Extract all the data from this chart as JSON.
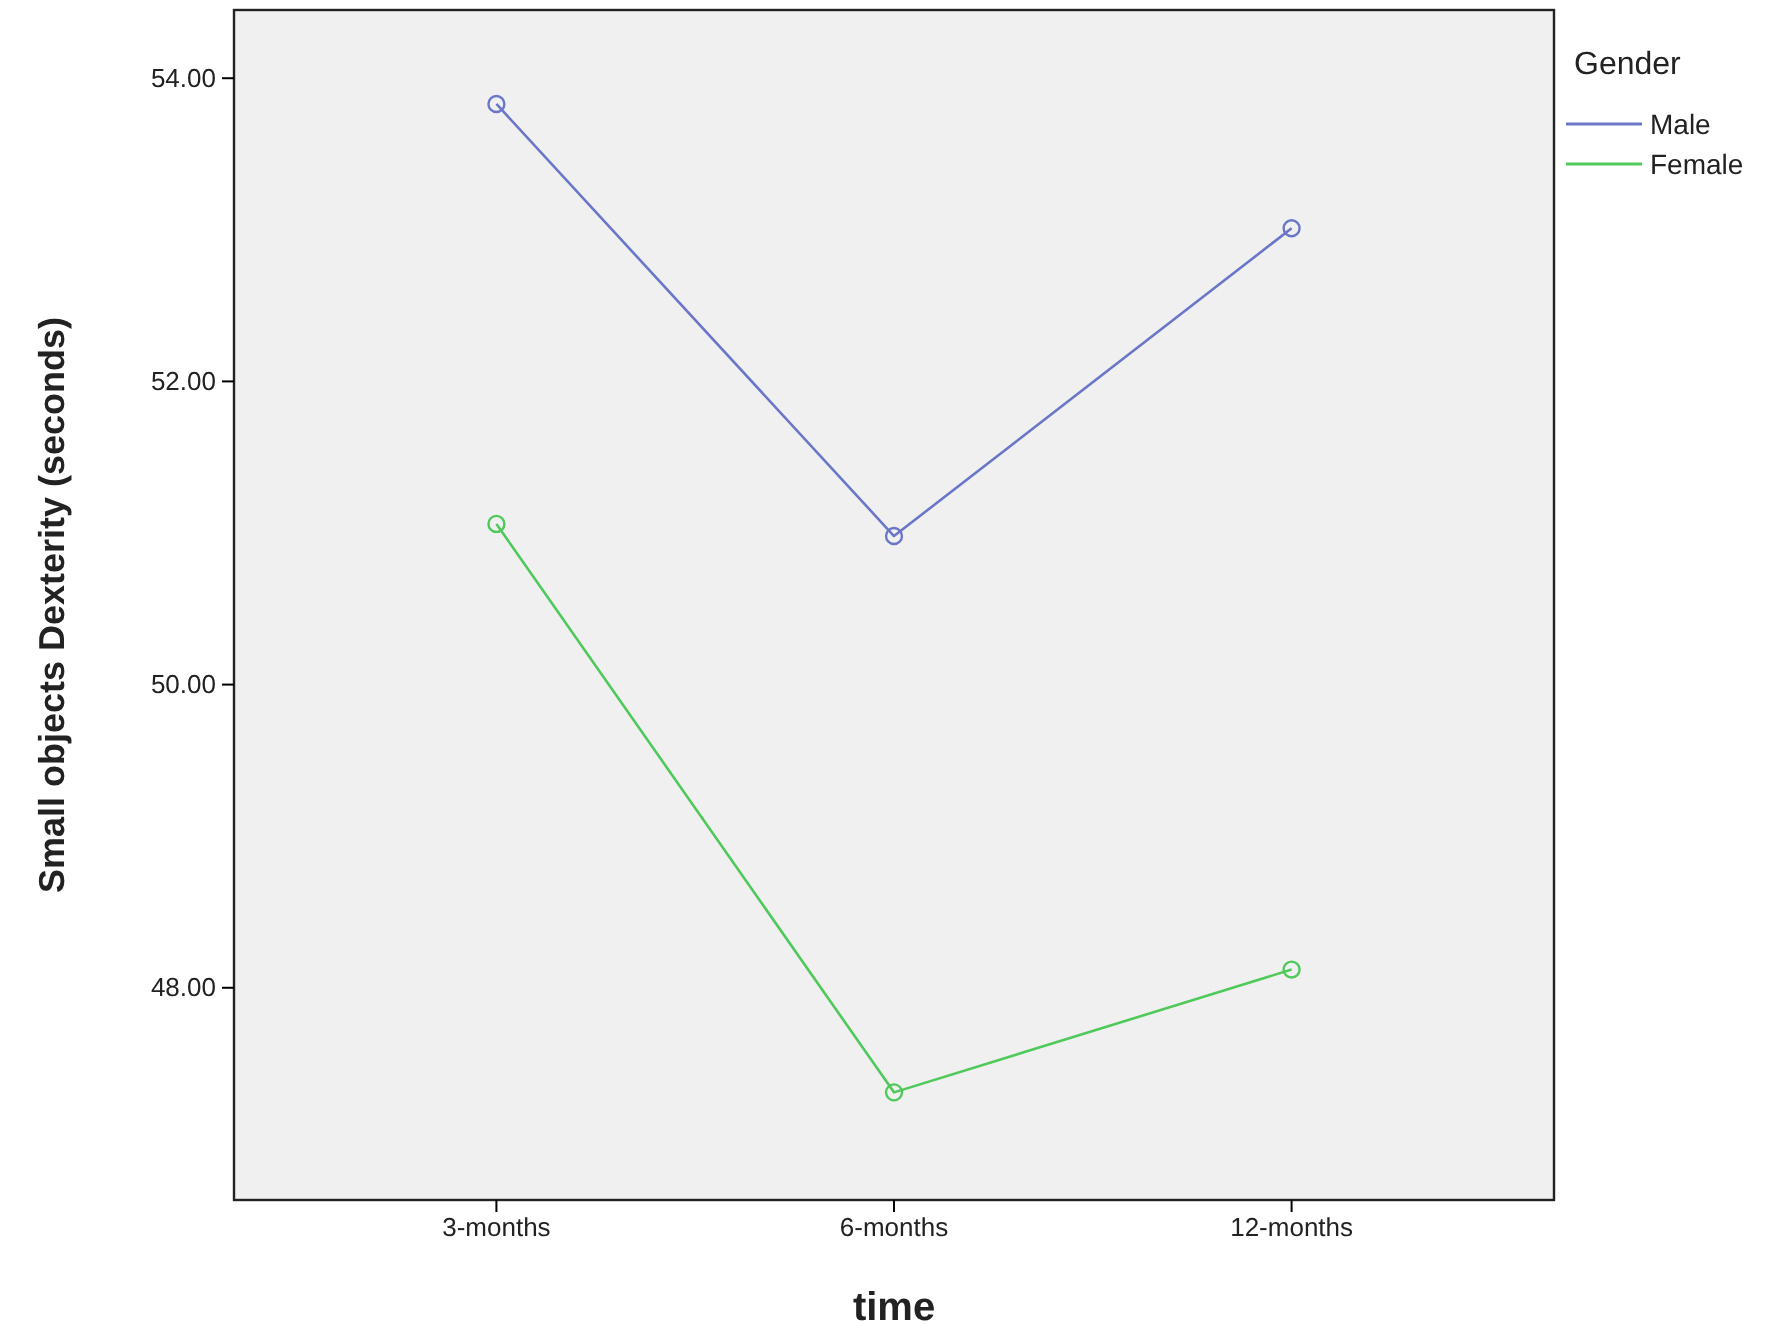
{
  "chart_data": {
    "type": "line",
    "xlabel": "time",
    "ylabel": "Small objects Dexterity (seconds)",
    "legend_title": "Gender",
    "categories": [
      "3-months",
      "6-months",
      "12-months"
    ],
    "series": [
      {
        "name": "Male",
        "color": "#6a77c9",
        "values": [
          53.83,
          50.98,
          53.01
        ]
      },
      {
        "name": "Female",
        "color": "#4fc95a",
        "values": [
          51.06,
          47.31,
          48.12
        ]
      }
    ],
    "ylim": [
      46.6,
      54.45
    ],
    "yticks": [
      {
        "value": 48,
        "label": "48.00"
      },
      {
        "value": 50,
        "label": "50.00"
      },
      {
        "value": 52,
        "label": "52.00"
      },
      {
        "value": 54,
        "label": "54.00"
      }
    ],
    "grid": false,
    "legend": "top right",
    "marker": "circle",
    "line_style": "solid"
  }
}
